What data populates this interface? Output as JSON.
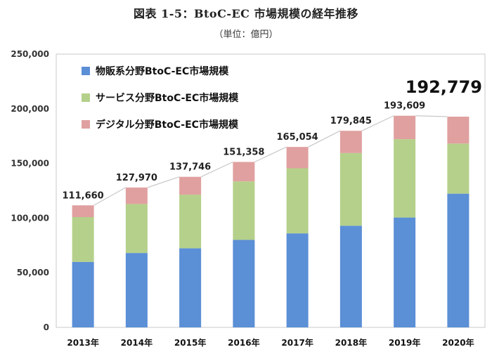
{
  "header": {
    "title": "図表 1-5：BtoC-EC 市場規模の経年推移",
    "subtitle": "（単位：億円）"
  },
  "chart_data": {
    "type": "bar",
    "stacked": true,
    "title": "図表 1-5：BtoC-EC 市場規模の経年推移",
    "unit": "億円",
    "categories": [
      "2013年",
      "2014年",
      "2015年",
      "2016年",
      "2017年",
      "2018年",
      "2019年",
      "2020年"
    ],
    "series": [
      {
        "name": "物販系分野BtoC-EC市場規模",
        "color": "#5b8fd6",
        "values": [
          59931,
          68043,
          72398,
          80043,
          86008,
          92992,
          100515,
          122333
        ]
      },
      {
        "name": "サービス分野BtoC-EC市場規模",
        "color": "#b5d08a",
        "values": [
          40972,
          44816,
          49014,
          53532,
          59568,
          66471,
          71672,
          45832
        ]
      },
      {
        "name": "デジタル分野BtoC-EC市場規模",
        "color": "#e0a0a0",
        "values": [
          10757,
          15111,
          16334,
          17782,
          19478,
          20382,
          21422,
          24614
        ]
      }
    ],
    "totals": [
      111660,
      127970,
      137746,
      151358,
      165054,
      179845,
      193609,
      192779
    ],
    "total_labels": [
      "111,660",
      "127,970",
      "137,746",
      "151,358",
      "165,054",
      "179,845",
      "193,609",
      "192,779"
    ],
    "highlight_label": "192,779",
    "ylim": [
      0,
      250000
    ],
    "yticks": [
      0,
      50000,
      100000,
      150000,
      200000,
      250000
    ],
    "ytick_labels": [
      "0",
      "50,000",
      "100,000",
      "150,000",
      "200,000",
      "250,000"
    ],
    "legend_position": "top-left",
    "grid": false
  }
}
